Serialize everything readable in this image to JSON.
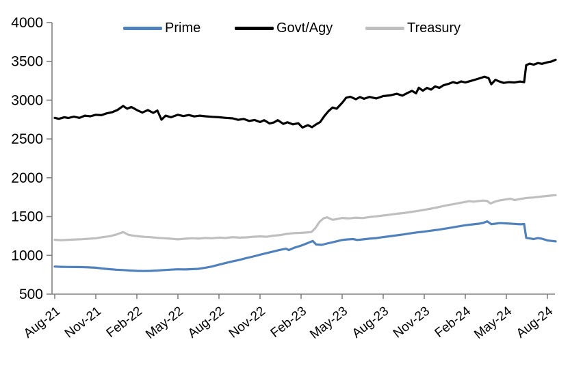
{
  "chart_data": {
    "type": "line",
    "x_axis": {
      "tick_labels": [
        "Aug-21",
        "Nov-21",
        "Feb-22",
        "May-22",
        "Aug-22",
        "Nov-22",
        "Feb-23",
        "May-23",
        "Aug-23",
        "Nov-23",
        "Feb-24",
        "May-24",
        "Aug-24"
      ],
      "tick_months": [
        0,
        3,
        6,
        9,
        12,
        15,
        18,
        21,
        24,
        27,
        30,
        33,
        36
      ]
    },
    "y_axis": {
      "min": 500,
      "max": 4000,
      "step": 500,
      "tick_labels": [
        "500",
        "1000",
        "1500",
        "2000",
        "2500",
        "3000",
        "3500",
        "4000"
      ]
    },
    "grid": "off",
    "legend_position": "top",
    "axis_color": "#808080",
    "series": [
      {
        "name": "Prime",
        "color": "#4f81bd",
        "points": [
          [
            0,
            855
          ],
          [
            0.5,
            852
          ],
          [
            1,
            850
          ],
          [
            1.5,
            849
          ],
          [
            2,
            848
          ],
          [
            2.5,
            845
          ],
          [
            3,
            840
          ],
          [
            3.5,
            830
          ],
          [
            4,
            822
          ],
          [
            4.5,
            815
          ],
          [
            5,
            810
          ],
          [
            5.5,
            804
          ],
          [
            6,
            800
          ],
          [
            6.5,
            798
          ],
          [
            7,
            800
          ],
          [
            7.5,
            804
          ],
          [
            8,
            810
          ],
          [
            8.5,
            816
          ],
          [
            9,
            820
          ],
          [
            9.5,
            818
          ],
          [
            10,
            822
          ],
          [
            10.5,
            826
          ],
          [
            11,
            840
          ],
          [
            11.5,
            856
          ],
          [
            12,
            880
          ],
          [
            12.5,
            902
          ],
          [
            13,
            922
          ],
          [
            13.5,
            942
          ],
          [
            14,
            965
          ],
          [
            14.5,
            985
          ],
          [
            15,
            1008
          ],
          [
            15.5,
            1030
          ],
          [
            16,
            1050
          ],
          [
            16.4,
            1068
          ],
          [
            16.9,
            1085
          ],
          [
            17.1,
            1068
          ],
          [
            17.5,
            1098
          ],
          [
            18,
            1125
          ],
          [
            18.4,
            1152
          ],
          [
            18.85,
            1185
          ],
          [
            19.1,
            1140
          ],
          [
            19.5,
            1135
          ],
          [
            19.9,
            1152
          ],
          [
            20.3,
            1168
          ],
          [
            20.7,
            1185
          ],
          [
            21,
            1198
          ],
          [
            21.4,
            1205
          ],
          [
            21.8,
            1210
          ],
          [
            22.1,
            1198
          ],
          [
            22.5,
            1205
          ],
          [
            23,
            1215
          ],
          [
            23.5,
            1222
          ],
          [
            24,
            1235
          ],
          [
            24.5,
            1246
          ],
          [
            25,
            1258
          ],
          [
            25.5,
            1270
          ],
          [
            26,
            1284
          ],
          [
            26.5,
            1296
          ],
          [
            27,
            1306
          ],
          [
            27.5,
            1318
          ],
          [
            28,
            1330
          ],
          [
            28.5,
            1344
          ],
          [
            29,
            1358
          ],
          [
            29.5,
            1374
          ],
          [
            30,
            1388
          ],
          [
            30.5,
            1398
          ],
          [
            31,
            1408
          ],
          [
            31.3,
            1418
          ],
          [
            31.6,
            1438
          ],
          [
            31.9,
            1402
          ],
          [
            32.2,
            1408
          ],
          [
            32.5,
            1415
          ],
          [
            33,
            1412
          ],
          [
            33.5,
            1406
          ],
          [
            34,
            1400
          ],
          [
            34.3,
            1404
          ],
          [
            34.45,
            1225
          ],
          [
            34.8,
            1216
          ],
          [
            35,
            1210
          ],
          [
            35.3,
            1222
          ],
          [
            35.6,
            1214
          ],
          [
            36,
            1192
          ],
          [
            36.3,
            1186
          ],
          [
            36.6,
            1180
          ]
        ]
      },
      {
        "name": "Govt/Agy",
        "color": "#000000",
        "points": [
          [
            0,
            2772
          ],
          [
            0.3,
            2760
          ],
          [
            0.7,
            2780
          ],
          [
            1,
            2770
          ],
          [
            1.4,
            2788
          ],
          [
            1.8,
            2772
          ],
          [
            2.2,
            2800
          ],
          [
            2.6,
            2792
          ],
          [
            3,
            2812
          ],
          [
            3.4,
            2806
          ],
          [
            3.8,
            2830
          ],
          [
            4.2,
            2845
          ],
          [
            4.6,
            2875
          ],
          [
            5,
            2925
          ],
          [
            5.3,
            2890
          ],
          [
            5.6,
            2912
          ],
          [
            6,
            2872
          ],
          [
            6.4,
            2840
          ],
          [
            6.8,
            2872
          ],
          [
            7.2,
            2836
          ],
          [
            7.5,
            2866
          ],
          [
            7.8,
            2748
          ],
          [
            8.1,
            2800
          ],
          [
            8.5,
            2780
          ],
          [
            9,
            2812
          ],
          [
            9.4,
            2795
          ],
          [
            9.8,
            2808
          ],
          [
            10.2,
            2790
          ],
          [
            10.6,
            2800
          ],
          [
            11,
            2792
          ],
          [
            11.5,
            2785
          ],
          [
            12,
            2780
          ],
          [
            12.5,
            2772
          ],
          [
            13,
            2766
          ],
          [
            13.4,
            2746
          ],
          [
            13.8,
            2758
          ],
          [
            14.2,
            2732
          ],
          [
            14.6,
            2745
          ],
          [
            15,
            2718
          ],
          [
            15.3,
            2742
          ],
          [
            15.7,
            2700
          ],
          [
            16,
            2712
          ],
          [
            16.3,
            2742
          ],
          [
            16.7,
            2694
          ],
          [
            17,
            2715
          ],
          [
            17.4,
            2688
          ],
          [
            17.8,
            2702
          ],
          [
            18.1,
            2648
          ],
          [
            18.5,
            2678
          ],
          [
            18.8,
            2652
          ],
          [
            19.1,
            2688
          ],
          [
            19.4,
            2718
          ],
          [
            19.7,
            2795
          ],
          [
            20,
            2858
          ],
          [
            20.3,
            2905
          ],
          [
            20.6,
            2890
          ],
          [
            21,
            2965
          ],
          [
            21.3,
            3032
          ],
          [
            21.6,
            3044
          ],
          [
            22,
            3012
          ],
          [
            22.3,
            3040
          ],
          [
            22.6,
            3018
          ],
          [
            23,
            3042
          ],
          [
            23.5,
            3022
          ],
          [
            24,
            3052
          ],
          [
            24.5,
            3062
          ],
          [
            25,
            3082
          ],
          [
            25.4,
            3058
          ],
          [
            25.8,
            3095
          ],
          [
            26.1,
            3120
          ],
          [
            26.4,
            3088
          ],
          [
            26.6,
            3160
          ],
          [
            26.9,
            3122
          ],
          [
            27.2,
            3158
          ],
          [
            27.5,
            3136
          ],
          [
            27.8,
            3178
          ],
          [
            28.1,
            3158
          ],
          [
            28.4,
            3192
          ],
          [
            28.8,
            3212
          ],
          [
            29.1,
            3232
          ],
          [
            29.4,
            3218
          ],
          [
            29.7,
            3242
          ],
          [
            30,
            3228
          ],
          [
            30.4,
            3248
          ],
          [
            30.8,
            3268
          ],
          [
            31.1,
            3285
          ],
          [
            31.4,
            3302
          ],
          [
            31.7,
            3285
          ],
          [
            31.9,
            3205
          ],
          [
            32.2,
            3262
          ],
          [
            32.5,
            3240
          ],
          [
            32.8,
            3222
          ],
          [
            33.2,
            3232
          ],
          [
            33.6,
            3228
          ],
          [
            34,
            3240
          ],
          [
            34.3,
            3232
          ],
          [
            34.45,
            3452
          ],
          [
            34.7,
            3470
          ],
          [
            35,
            3458
          ],
          [
            35.3,
            3478
          ],
          [
            35.6,
            3468
          ],
          [
            36,
            3488
          ],
          [
            36.3,
            3498
          ],
          [
            36.6,
            3520
          ]
        ]
      },
      {
        "name": "Treasury",
        "color": "#bfbfbf",
        "points": [
          [
            0,
            1200
          ],
          [
            0.5,
            1196
          ],
          [
            1,
            1200
          ],
          [
            1.5,
            1204
          ],
          [
            2,
            1208
          ],
          [
            2.5,
            1214
          ],
          [
            3,
            1220
          ],
          [
            3.5,
            1234
          ],
          [
            4,
            1246
          ],
          [
            4.5,
            1268
          ],
          [
            5,
            1300
          ],
          [
            5.4,
            1264
          ],
          [
            5.8,
            1252
          ],
          [
            6.2,
            1244
          ],
          [
            6.6,
            1238
          ],
          [
            7,
            1234
          ],
          [
            7.5,
            1226
          ],
          [
            8,
            1220
          ],
          [
            8.5,
            1214
          ],
          [
            9,
            1206
          ],
          [
            9.5,
            1214
          ],
          [
            10,
            1220
          ],
          [
            10.5,
            1216
          ],
          [
            11,
            1224
          ],
          [
            11.5,
            1220
          ],
          [
            12,
            1228
          ],
          [
            12.5,
            1224
          ],
          [
            13,
            1234
          ],
          [
            13.5,
            1228
          ],
          [
            14,
            1232
          ],
          [
            14.5,
            1240
          ],
          [
            15,
            1244
          ],
          [
            15.5,
            1240
          ],
          [
            16,
            1254
          ],
          [
            16.5,
            1262
          ],
          [
            17,
            1278
          ],
          [
            17.5,
            1286
          ],
          [
            18,
            1290
          ],
          [
            18.4,
            1294
          ],
          [
            18.75,
            1300
          ],
          [
            19.05,
            1352
          ],
          [
            19.35,
            1432
          ],
          [
            19.65,
            1478
          ],
          [
            19.9,
            1490
          ],
          [
            20.3,
            1458
          ],
          [
            20.7,
            1470
          ],
          [
            21,
            1482
          ],
          [
            21.5,
            1476
          ],
          [
            22,
            1486
          ],
          [
            22.5,
            1480
          ],
          [
            23,
            1494
          ],
          [
            23.5,
            1502
          ],
          [
            24,
            1514
          ],
          [
            24.5,
            1524
          ],
          [
            25,
            1536
          ],
          [
            25.5,
            1546
          ],
          [
            26,
            1558
          ],
          [
            26.5,
            1572
          ],
          [
            27,
            1586
          ],
          [
            27.5,
            1602
          ],
          [
            28,
            1620
          ],
          [
            28.5,
            1640
          ],
          [
            29,
            1656
          ],
          [
            29.5,
            1672
          ],
          [
            30,
            1688
          ],
          [
            30.3,
            1698
          ],
          [
            30.6,
            1692
          ],
          [
            31,
            1700
          ],
          [
            31.3,
            1706
          ],
          [
            31.6,
            1700
          ],
          [
            31.85,
            1668
          ],
          [
            32.1,
            1688
          ],
          [
            32.5,
            1708
          ],
          [
            33,
            1722
          ],
          [
            33.3,
            1730
          ],
          [
            33.6,
            1712
          ],
          [
            34,
            1726
          ],
          [
            34.5,
            1740
          ],
          [
            35,
            1746
          ],
          [
            35.5,
            1756
          ],
          [
            36,
            1766
          ],
          [
            36.6,
            1776
          ]
        ]
      }
    ]
  }
}
